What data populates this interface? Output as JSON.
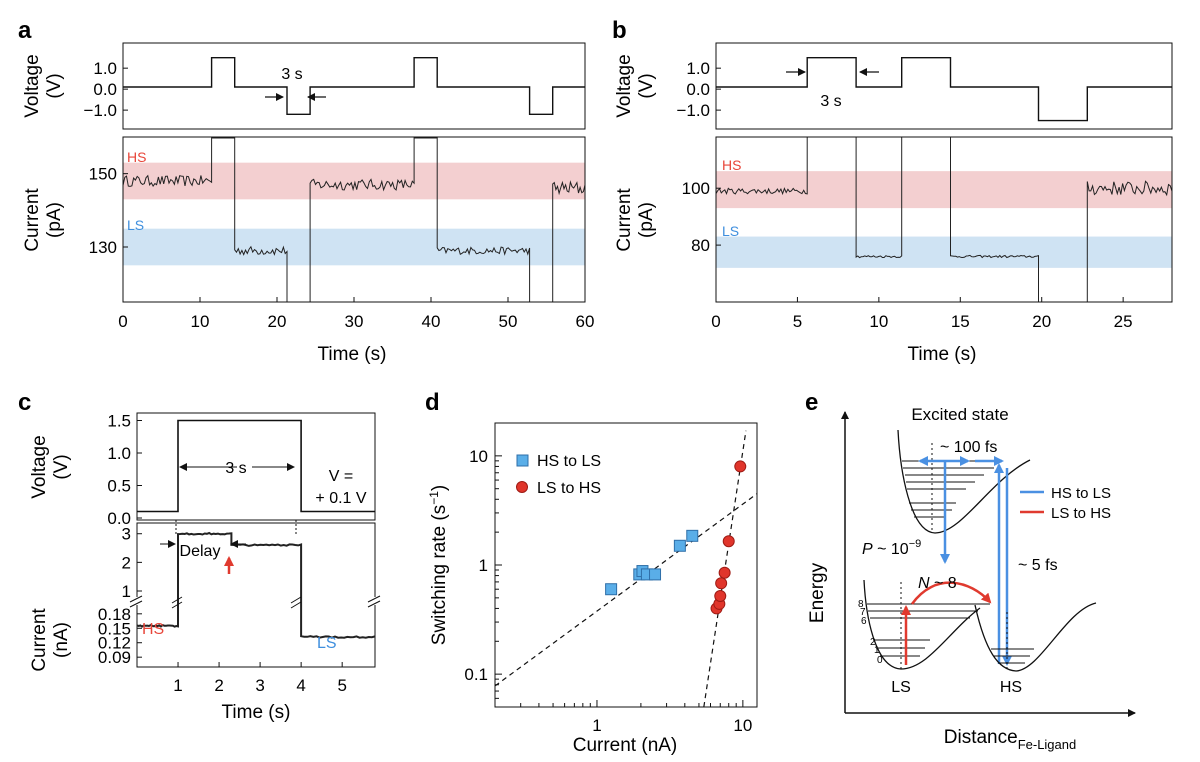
{
  "panels": {
    "a": "a",
    "b": "b",
    "c": "c",
    "d": "d",
    "e": "e"
  },
  "colors": {
    "hs_band": "#f3cfd0",
    "ls_band": "#cfe3f3",
    "hs_text": "#e8463a",
    "ls_text": "#3f8fde",
    "blue": "#4a90e2",
    "red": "#e03a2f",
    "square_fill": "#5aaee8",
    "square_edge": "#2f6fa8",
    "circle_fill": "#e0352b",
    "circle_edge": "#9e1b14",
    "trace": "#222222"
  },
  "chart_data": [
    {
      "id": "a-voltage",
      "type": "line",
      "ylabel": "Voltage\n(V)",
      "yticks": [
        "1.0",
        "0.0",
        "−1.0"
      ],
      "ylim": [
        -1.9,
        2.2
      ],
      "series": [
        {
          "x": [
            0,
            11.5,
            11.5,
            14.5,
            14.5,
            21.3,
            21.3,
            24.3,
            24.3,
            37.8,
            37.8,
            40.8,
            40.8,
            52.8,
            52.8,
            55.8,
            55.8,
            60
          ],
          "y": [
            0.1,
            0.1,
            1.5,
            1.5,
            0.1,
            0.1,
            -1.2,
            -1.2,
            0.1,
            0.1,
            1.5,
            1.5,
            0.1,
            0.1,
            -1.2,
            -1.2,
            0.1,
            0.1
          ]
        }
      ],
      "annotations": [
        {
          "text": "3 s"
        }
      ]
    },
    {
      "id": "a-current",
      "type": "line",
      "ylabel": "Current\n(pA)",
      "xlabel": "Time (s)",
      "xlim": [
        0,
        60
      ],
      "ylim": [
        115,
        160
      ],
      "xticks": [
        "0",
        "10",
        "20",
        "30",
        "40",
        "50",
        "60"
      ],
      "yticks": [
        "150",
        "130"
      ],
      "bands": [
        {
          "label": "HS",
          "range": [
            143,
            153
          ]
        },
        {
          "label": "LS",
          "range": [
            125,
            135
          ]
        }
      ],
      "segments": [
        {
          "x": [
            0,
            11.5
          ],
          "level": 148,
          "noise": 1.5
        },
        {
          "x": [
            14.5,
            21.3
          ],
          "level": 129,
          "noise": 1.2
        },
        {
          "x": [
            24.3,
            37.8
          ],
          "level": 147,
          "noise": 1.5
        },
        {
          "x": [
            40.8,
            52.8
          ],
          "level": 129,
          "noise": 1.0
        },
        {
          "x": [
            55.8,
            60
          ],
          "level": 146,
          "noise": 2.0
        }
      ]
    },
    {
      "id": "b-voltage",
      "type": "line",
      "ylabel": "Voltage\n(V)",
      "yticks": [
        "1.0",
        "0.0",
        "−1.0"
      ],
      "ylim": [
        -1.9,
        2.2
      ],
      "series": [
        {
          "x": [
            0,
            5.6,
            5.6,
            8.6,
            8.6,
            11.4,
            11.4,
            14.4,
            14.4,
            19.8,
            19.8,
            22.8,
            22.8,
            28
          ],
          "y": [
            0.1,
            0.1,
            1.5,
            1.5,
            0.1,
            0.1,
            1.5,
            1.5,
            0.1,
            0.1,
            -1.5,
            -1.5,
            0.1,
            0.1
          ]
        }
      ],
      "annotations": [
        {
          "text": "3 s"
        }
      ]
    },
    {
      "id": "b-current",
      "type": "line",
      "ylabel": "Current\n(pA)",
      "xlabel": "Time (s)",
      "xlim": [
        0,
        28
      ],
      "ylim": [
        60,
        118
      ],
      "xticks": [
        "0",
        "5",
        "10",
        "15",
        "20",
        "25"
      ],
      "yticks": [
        "100",
        "80"
      ],
      "bands": [
        {
          "label": "HS",
          "range": [
            93,
            106
          ]
        },
        {
          "label": "LS",
          "range": [
            72,
            83
          ]
        }
      ],
      "segments": [
        {
          "x": [
            0,
            5.6
          ],
          "level": 99,
          "noise": 1.0
        },
        {
          "x": [
            8.6,
            11.4
          ],
          "level": 76,
          "noise": 0.4
        },
        {
          "x": [
            14.4,
            19.8
          ],
          "level": 76,
          "noise": 0.4
        },
        {
          "x": [
            22.8,
            28
          ],
          "level": 100,
          "noise": 2.5
        }
      ]
    },
    {
      "id": "c-voltage",
      "type": "line",
      "ylabel": "Voltage\n(V)",
      "xlim": [
        0,
        5.8
      ],
      "ylim": [
        0,
        1.6
      ],
      "yticks": [
        "1.5",
        "1.0",
        "0.5",
        "0.0"
      ],
      "series": [
        {
          "x": [
            0,
            1,
            1,
            4,
            4,
            5.8
          ],
          "y": [
            0.1,
            0.1,
            1.5,
            1.5,
            0.1,
            0.1
          ]
        }
      ],
      "annotations": [
        {
          "text": "3 s"
        },
        {
          "text": "V =\n+ 0.1 V"
        }
      ]
    },
    {
      "id": "c-current",
      "type": "line",
      "ylabel": "Current\n(nA)",
      "xlabel": "Time (s)",
      "xlim": [
        0,
        5.8
      ],
      "upper": {
        "ylim": [
          1,
          3.2
        ],
        "yticks": [
          "3",
          "2",
          "1"
        ]
      },
      "lower": {
        "ylim": [
          0.08,
          0.19
        ],
        "yticks": [
          "0.18",
          "0.15",
          "0.12",
          "0.09"
        ]
      },
      "xticks": [
        "1",
        "2",
        "3",
        "4",
        "5"
      ],
      "segments": [
        {
          "x": [
            0,
            1
          ],
          "level": 0.155,
          "axis": "lower"
        },
        {
          "x": [
            1,
            2.3
          ],
          "level": 3.0,
          "axis": "upper"
        },
        {
          "x": [
            2.3,
            4
          ],
          "level": 2.6,
          "axis": "upper"
        },
        {
          "x": [
            4,
            5.8
          ],
          "level": 0.132,
          "axis": "lower"
        }
      ],
      "annotations": [
        {
          "text": "Delay"
        },
        {
          "text": "HS"
        },
        {
          "text": "LS"
        }
      ]
    },
    {
      "id": "d",
      "type": "scatter",
      "xlabel": "Current (nA)",
      "ylabel": "Switching rate (s⁻¹)",
      "xscale": "log",
      "yscale": "log",
      "xlim": [
        0.2,
        12.5
      ],
      "ylim": [
        0.05,
        20
      ],
      "xticks": [
        "1",
        "10"
      ],
      "yticks": [
        "10",
        "1",
        "0.1"
      ],
      "legend": "top-left",
      "series": [
        {
          "name": "HS to LS",
          "x": [
            1.25,
            1.95,
            2.05,
            2.2,
            2.5,
            3.7,
            4.5
          ],
          "y": [
            0.6,
            0.82,
            0.88,
            0.82,
            0.82,
            1.5,
            1.85
          ]
        },
        {
          "name": "LS to HS",
          "x": [
            6.6,
            6.9,
            7.0,
            7.1,
            7.5,
            8.0,
            9.6
          ],
          "y": [
            0.4,
            0.44,
            0.52,
            0.68,
            0.85,
            1.65,
            8.0
          ]
        }
      ],
      "fits": [
        {
          "x": [
            0.2,
            12.5
          ],
          "y": [
            0.078,
            4.5
          ]
        },
        {
          "x": [
            5.4,
            10.5
          ],
          "y": [
            0.05,
            17
          ]
        }
      ]
    }
  ],
  "diagram_e": {
    "title": "Excited state",
    "ylabel": "Energy",
    "xlabel": "Distance",
    "xlabel_sub": "Fe-Ligand",
    "legend": [
      {
        "label": "HS to LS"
      },
      {
        "label": "LS to HS"
      }
    ],
    "labels": {
      "fs100": "~ 100 fs",
      "prob": "P ~ 10",
      "prob_exp": "−9",
      "nlevel": "N ~ 8",
      "fs5": "~ 5 fs",
      "ls": "LS",
      "hs": "HS"
    },
    "levels": [
      "8",
      "7",
      "6",
      "2",
      "1",
      "0"
    ]
  }
}
